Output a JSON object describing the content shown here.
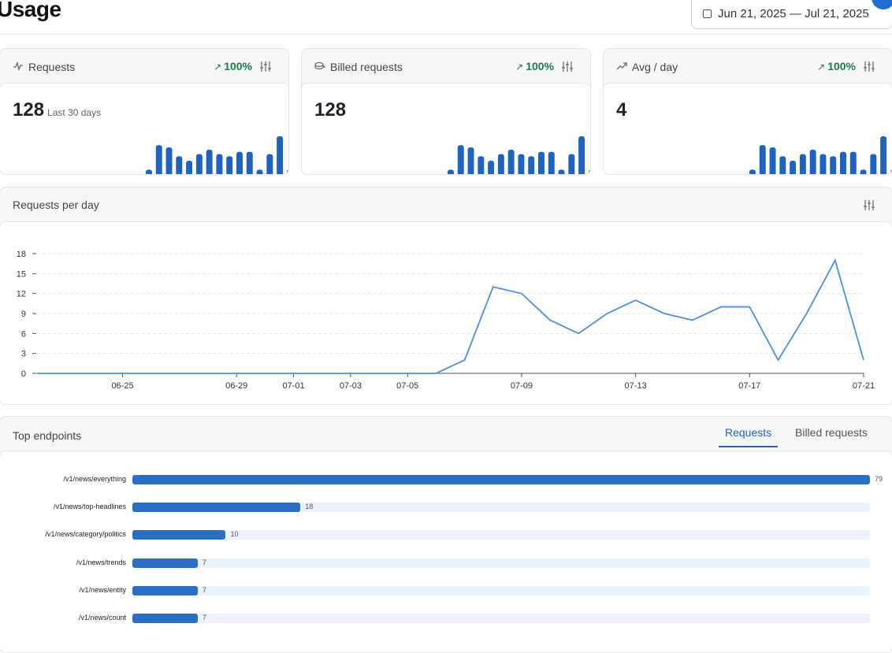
{
  "header": {
    "title": "Usage",
    "date_range": "Jun 21, 2025 — Jul 21, 2025"
  },
  "colors": {
    "accent": "#1f62bf",
    "positive": "#1f7a4a",
    "bar": "#1f62bf",
    "line": "#4a90e2"
  },
  "stats": [
    {
      "label": "Requests",
      "icon": "activity-icon",
      "change": "100%",
      "value": "128",
      "sub": "Last 30 days",
      "spark": [
        0,
        0,
        0,
        0,
        0,
        0,
        0,
        0,
        0,
        0,
        0,
        0,
        0,
        0,
        0,
        0,
        0,
        2,
        13,
        12,
        8,
        6,
        9,
        11,
        9,
        8,
        10,
        10,
        2,
        9,
        17,
        2
      ]
    },
    {
      "label": "Billed requests",
      "icon": "coins-icon",
      "change": "100%",
      "value": "128",
      "sub": "",
      "spark": [
        0,
        0,
        0,
        0,
        0,
        0,
        0,
        0,
        0,
        0,
        0,
        0,
        0,
        0,
        0,
        0,
        0,
        2,
        13,
        12,
        8,
        6,
        9,
        11,
        9,
        8,
        10,
        10,
        2,
        9,
        17,
        2
      ]
    },
    {
      "label": "Avg / day",
      "icon": "trending-up-icon",
      "change": "100%",
      "value": "4",
      "sub": "",
      "spark": [
        0,
        0,
        0,
        0,
        0,
        0,
        0,
        0,
        0,
        0,
        0,
        0,
        0,
        0,
        0,
        0,
        0,
        2,
        13,
        12,
        8,
        6,
        9,
        11,
        9,
        8,
        10,
        10,
        2,
        9,
        17,
        2
      ]
    }
  ],
  "rpd": {
    "title": "Requests per day"
  },
  "chart_data": [
    {
      "type": "line",
      "title": "Requests per day",
      "x": [
        "06-22",
        "06-23",
        "06-24",
        "06-25",
        "06-26",
        "06-27",
        "06-28",
        "06-29",
        "06-30",
        "07-01",
        "07-02",
        "07-03",
        "07-04",
        "07-05",
        "07-06",
        "07-07",
        "07-08",
        "07-09",
        "07-10",
        "07-11",
        "07-12",
        "07-13",
        "07-14",
        "07-15",
        "07-16",
        "07-17",
        "07-18",
        "07-19",
        "07-20",
        "07-21"
      ],
      "x_ticks": [
        "06-25",
        "06-29",
        "07-01",
        "07-03",
        "07-05",
        "07-09",
        "07-13",
        "07-17",
        "07-21"
      ],
      "y_ticks": [
        "0",
        "3",
        "6",
        "9",
        "12",
        "15",
        "18"
      ],
      "series": [
        {
          "values": [
            0,
            0,
            0,
            0,
            0,
            0,
            0,
            0,
            0,
            0,
            0,
            0,
            0,
            0,
            0,
            2,
            13,
            12,
            8,
            6,
            9,
            11,
            9,
            8,
            10,
            10,
            2,
            9,
            17,
            2
          ]
        }
      ],
      "ylim": [
        0,
        18
      ],
      "grid": true
    },
    {
      "type": "bar",
      "title": "Top endpoints",
      "categories": [
        "/v1/news/everything",
        "/v1/news/top-headlines",
        "/v1/news/category/politics",
        "/v1/news/trends",
        "/v1/news/entity",
        "/v1/news/count"
      ],
      "values": [
        79,
        18,
        10,
        7,
        7,
        7
      ],
      "orientation": "horizontal"
    }
  ],
  "endpoints": {
    "title": "Top endpoints",
    "tabs": [
      {
        "label": "Requests"
      },
      {
        "label": "Billed requests"
      }
    ],
    "rows": [
      {
        "path": "/v1/news/everything",
        "count": "79"
      },
      {
        "path": "/v1/news/top-headlines",
        "count": "18"
      },
      {
        "path": "/v1/news/category/politics",
        "count": "10"
      },
      {
        "path": "/v1/news/trends",
        "count": "7"
      },
      {
        "path": "/v1/news/entity",
        "count": "7"
      },
      {
        "path": "/v1/news/count",
        "count": "7"
      }
    ]
  }
}
